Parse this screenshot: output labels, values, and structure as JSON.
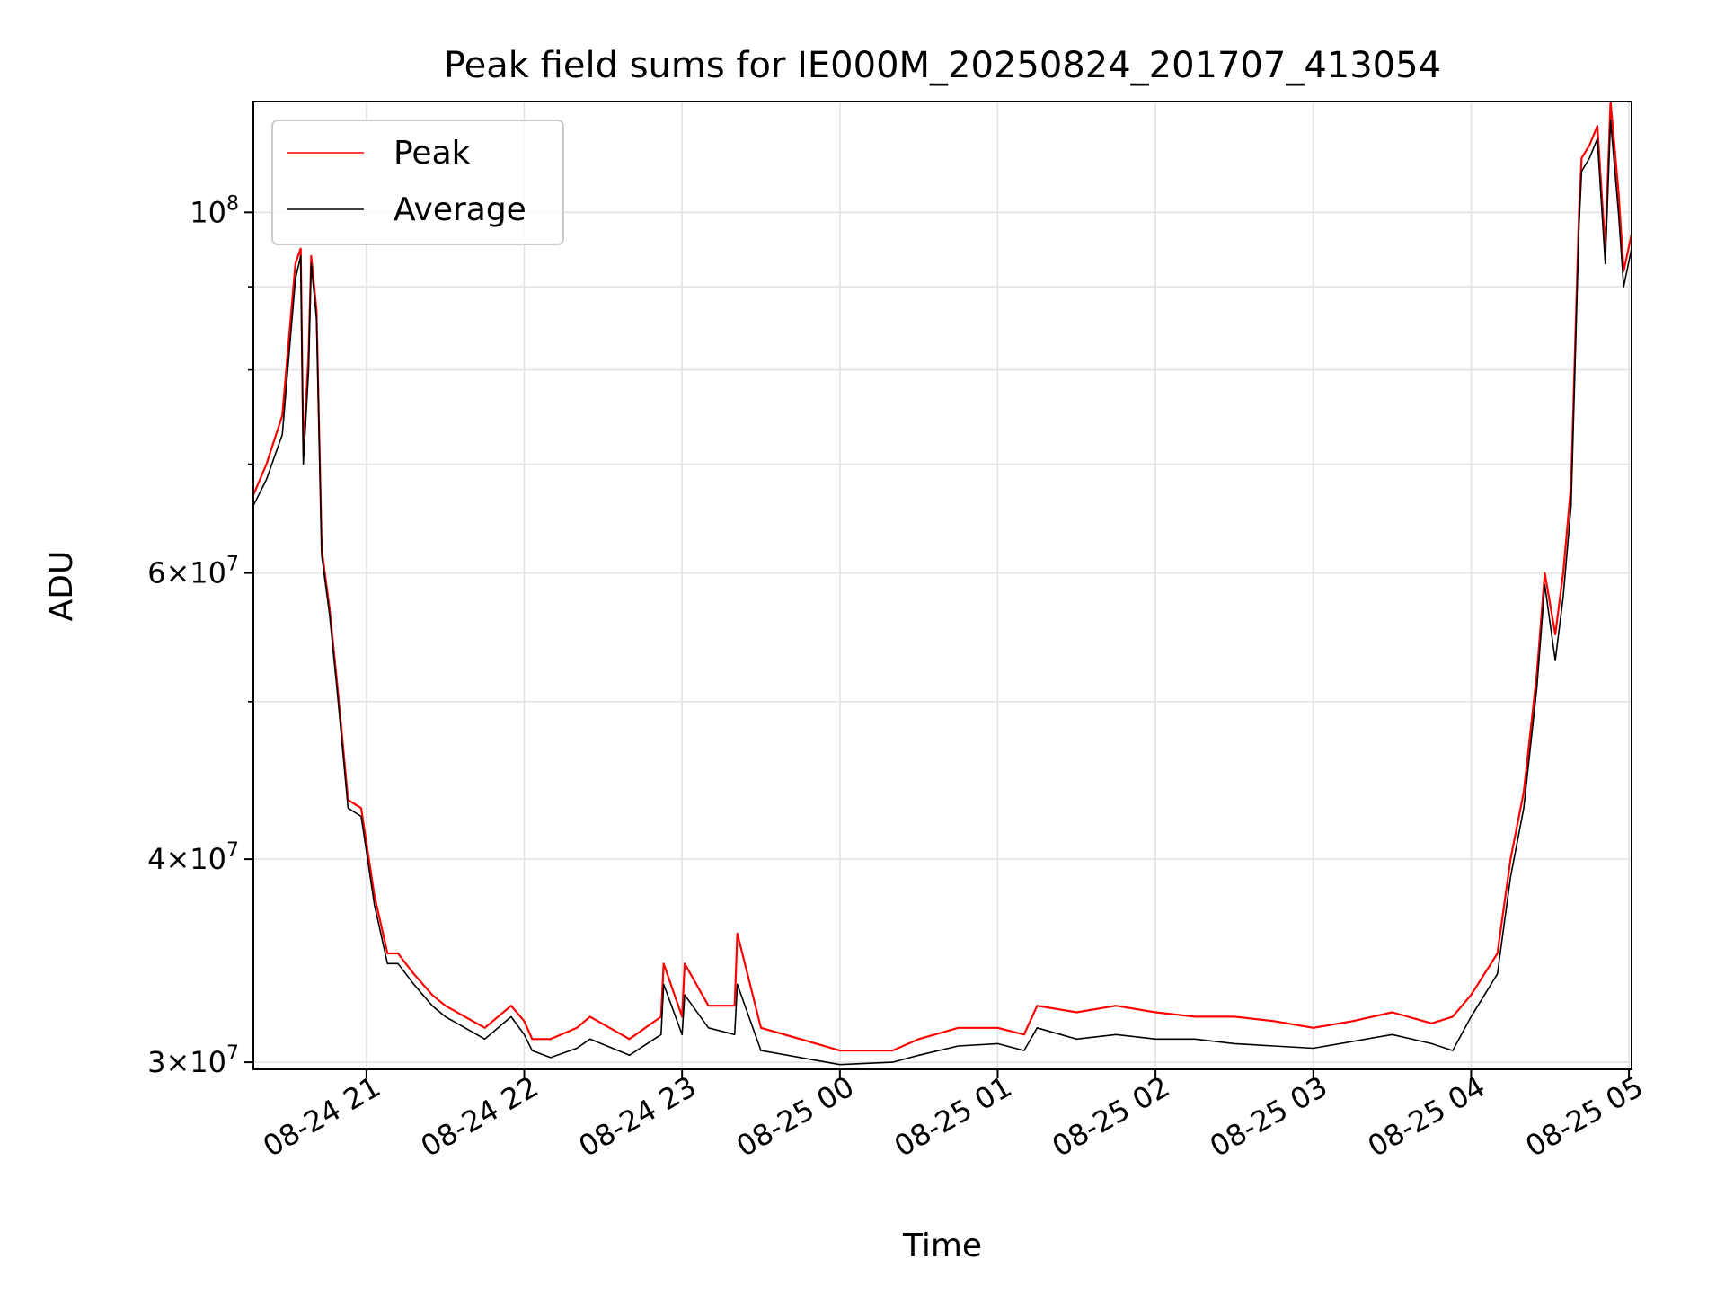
{
  "chart_data": {
    "type": "line",
    "title": "Peak field sums for IE000M_20250824_201707_413054",
    "xlabel": "Time",
    "ylabel": "ADU",
    "yscale": "log",
    "grid": true,
    "legend_position": "upper-left",
    "xlim": [
      "2025-08-24 20:17",
      "2025-08-25 05:01"
    ],
    "ylim": [
      29700000,
      117000000
    ],
    "x_ticks": [
      {
        "value": "2025-08-24 21:00",
        "label": "08-24 21"
      },
      {
        "value": "2025-08-24 22:00",
        "label": "08-24 22"
      },
      {
        "value": "2025-08-24 23:00",
        "label": "08-24 23"
      },
      {
        "value": "2025-08-25 00:00",
        "label": "08-25 00"
      },
      {
        "value": "2025-08-25 01:00",
        "label": "08-25 01"
      },
      {
        "value": "2025-08-25 02:00",
        "label": "08-25 02"
      },
      {
        "value": "2025-08-25 03:00",
        "label": "08-25 03"
      },
      {
        "value": "2025-08-25 04:00",
        "label": "08-25 04"
      },
      {
        "value": "2025-08-25 05:00",
        "label": "08-25 05"
      }
    ],
    "y_major_ticks": [
      {
        "value": 30000000,
        "mant": "3",
        "exp": "7"
      },
      {
        "value": 40000000,
        "mant": "4",
        "exp": "7"
      },
      {
        "value": 60000000,
        "mant": "6",
        "exp": "7"
      },
      {
        "value": 100000000,
        "mant": "",
        "exp": "8"
      }
    ],
    "y_minor_grid": [
      50000000,
      70000000,
      80000000,
      90000000
    ],
    "series": [
      {
        "name": "Peak",
        "color": "#ff0000",
        "x": [
          "2025-08-24 20:17",
          "2025-08-24 20:22",
          "2025-08-24 20:28",
          "2025-08-24 20:33",
          "2025-08-24 20:35",
          "2025-08-24 20:36",
          "2025-08-24 20:38",
          "2025-08-24 20:39",
          "2025-08-24 20:41",
          "2025-08-24 20:43",
          "2025-08-24 20:46",
          "2025-08-24 20:49",
          "2025-08-24 20:53",
          "2025-08-24 20:58",
          "2025-08-24 21:03",
          "2025-08-24 21:08",
          "2025-08-24 21:12",
          "2025-08-24 21:18",
          "2025-08-24 21:25",
          "2025-08-24 21:30",
          "2025-08-24 21:45",
          "2025-08-24 21:55",
          "2025-08-24 22:00",
          "2025-08-24 22:03",
          "2025-08-24 22:10",
          "2025-08-24 22:20",
          "2025-08-24 22:25",
          "2025-08-24 22:40",
          "2025-08-24 22:52",
          "2025-08-24 22:53",
          "2025-08-24 23:00",
          "2025-08-24 23:01",
          "2025-08-24 23:10",
          "2025-08-24 23:20",
          "2025-08-24 23:21",
          "2025-08-24 23:30",
          "2025-08-24 23:45",
          "2025-08-25 00:00",
          "2025-08-25 00:20",
          "2025-08-25 00:30",
          "2025-08-25 00:45",
          "2025-08-25 01:00",
          "2025-08-25 01:10",
          "2025-08-25 01:15",
          "2025-08-25 01:30",
          "2025-08-25 01:45",
          "2025-08-25 02:00",
          "2025-08-25 02:15",
          "2025-08-25 02:30",
          "2025-08-25 02:45",
          "2025-08-25 03:00",
          "2025-08-25 03:15",
          "2025-08-25 03:30",
          "2025-08-25 03:45",
          "2025-08-25 03:53",
          "2025-08-25 04:00",
          "2025-08-25 04:10",
          "2025-08-25 04:15",
          "2025-08-25 04:20",
          "2025-08-25 04:25",
          "2025-08-25 04:28",
          "2025-08-25 04:32",
          "2025-08-25 04:35",
          "2025-08-25 04:38",
          "2025-08-25 04:41",
          "2025-08-25 04:42",
          "2025-08-25 04:45",
          "2025-08-25 04:48",
          "2025-08-25 04:51",
          "2025-08-25 04:53",
          "2025-08-25 04:56",
          "2025-08-25 04:58",
          "2025-08-25 05:01"
        ],
        "values": [
          67000000,
          70000000,
          75000000,
          93000000,
          95000000,
          71000000,
          82000000,
          94000000,
          87000000,
          62000000,
          57000000,
          51000000,
          43500000,
          43000000,
          38000000,
          35000000,
          35000000,
          34000000,
          33000000,
          32500000,
          31500000,
          32500000,
          31800000,
          31000000,
          31000000,
          31500000,
          32000000,
          31000000,
          32000000,
          34500000,
          32000000,
          34500000,
          32500000,
          32500000,
          36000000,
          31500000,
          31000000,
          30500000,
          30500000,
          31000000,
          31500000,
          31500000,
          31200000,
          32500000,
          32200000,
          32500000,
          32200000,
          32000000,
          32000000,
          31800000,
          31500000,
          31800000,
          32200000,
          31700000,
          32000000,
          33000000,
          35000000,
          40000000,
          44000000,
          52000000,
          60000000,
          55000000,
          60000000,
          68000000,
          100000000,
          108000000,
          110000000,
          113000000,
          95000000,
          117000000,
          103000000,
          92000000,
          97000000
        ]
      },
      {
        "name": "Average",
        "color": "#000000",
        "x": [
          "2025-08-24 20:17",
          "2025-08-24 20:22",
          "2025-08-24 20:28",
          "2025-08-24 20:33",
          "2025-08-24 20:35",
          "2025-08-24 20:36",
          "2025-08-24 20:38",
          "2025-08-24 20:39",
          "2025-08-24 20:41",
          "2025-08-24 20:43",
          "2025-08-24 20:46",
          "2025-08-24 20:49",
          "2025-08-24 20:53",
          "2025-08-24 20:58",
          "2025-08-24 21:03",
          "2025-08-24 21:08",
          "2025-08-24 21:12",
          "2025-08-24 21:18",
          "2025-08-24 21:25",
          "2025-08-24 21:30",
          "2025-08-24 21:45",
          "2025-08-24 21:55",
          "2025-08-24 22:00",
          "2025-08-24 22:03",
          "2025-08-24 22:10",
          "2025-08-24 22:20",
          "2025-08-24 22:25",
          "2025-08-24 22:40",
          "2025-08-24 22:52",
          "2025-08-24 22:53",
          "2025-08-24 23:00",
          "2025-08-24 23:01",
          "2025-08-24 23:10",
          "2025-08-24 23:20",
          "2025-08-24 23:21",
          "2025-08-24 23:30",
          "2025-08-24 23:45",
          "2025-08-25 00:00",
          "2025-08-25 00:20",
          "2025-08-25 00:30",
          "2025-08-25 00:45",
          "2025-08-25 01:00",
          "2025-08-25 01:10",
          "2025-08-25 01:15",
          "2025-08-25 01:30",
          "2025-08-25 01:45",
          "2025-08-25 02:00",
          "2025-08-25 02:15",
          "2025-08-25 02:30",
          "2025-08-25 02:45",
          "2025-08-25 03:00",
          "2025-08-25 03:15",
          "2025-08-25 03:30",
          "2025-08-25 03:45",
          "2025-08-25 03:53",
          "2025-08-25 04:00",
          "2025-08-25 04:10",
          "2025-08-25 04:15",
          "2025-08-25 04:20",
          "2025-08-25 04:25",
          "2025-08-25 04:28",
          "2025-08-25 04:32",
          "2025-08-25 04:35",
          "2025-08-25 04:38",
          "2025-08-25 04:41",
          "2025-08-25 04:42",
          "2025-08-25 04:45",
          "2025-08-25 04:48",
          "2025-08-25 04:51",
          "2025-08-25 04:53",
          "2025-08-25 04:56",
          "2025-08-25 04:58",
          "2025-08-25 05:01"
        ],
        "values": [
          66000000,
          68500000,
          73000000,
          91000000,
          94000000,
          70000000,
          80000000,
          93000000,
          86000000,
          61500000,
          56500000,
          50500000,
          43000000,
          42500000,
          37500000,
          34500000,
          34500000,
          33500000,
          32500000,
          32000000,
          31000000,
          32000000,
          31200000,
          30500000,
          30200000,
          30600000,
          31000000,
          30300000,
          31200000,
          33500000,
          31200000,
          33000000,
          31500000,
          31200000,
          33500000,
          30500000,
          30200000,
          29900000,
          30000000,
          30300000,
          30700000,
          30800000,
          30500000,
          31500000,
          31000000,
          31200000,
          31000000,
          31000000,
          30800000,
          30700000,
          30600000,
          30900000,
          31200000,
          30800000,
          30500000,
          32000000,
          34000000,
          39000000,
          43000000,
          51000000,
          59000000,
          53000000,
          58000000,
          66000000,
          98000000,
          106000000,
          108000000,
          111000000,
          93000000,
          114000000,
          100000000,
          90000000,
          95000000
        ]
      }
    ]
  }
}
